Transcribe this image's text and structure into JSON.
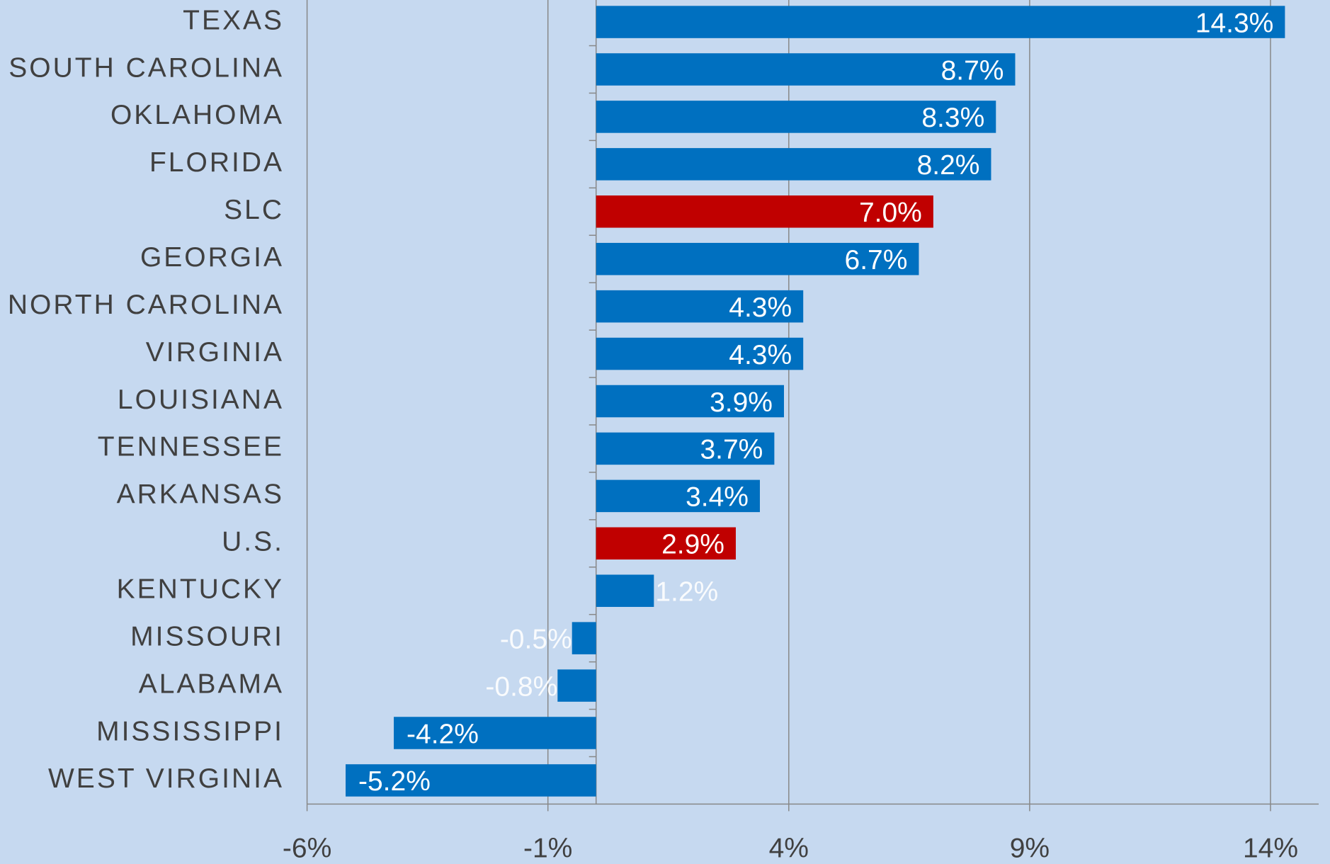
{
  "chart_data": {
    "type": "bar",
    "orientation": "horizontal",
    "categories": [
      "TEXAS",
      "SOUTH CAROLINA",
      "OKLAHOMA",
      "FLORIDA",
      "SLC",
      "GEORGIA",
      "NORTH CAROLINA",
      "VIRGINIA",
      "LOUISIANA",
      "TENNESSEE",
      "ARKANSAS",
      "U.S.",
      "KENTUCKY",
      "MISSOURI",
      "ALABAMA",
      "MISSISSIPPI",
      "WEST VIRGINIA"
    ],
    "values": [
      14.3,
      8.7,
      8.3,
      8.2,
      7.0,
      6.7,
      4.3,
      4.3,
      3.9,
      3.7,
      3.4,
      2.9,
      1.2,
      -0.5,
      -0.8,
      -4.2,
      -5.2
    ],
    "value_labels": [
      "14.3%",
      "8.7%",
      "8.3%",
      "8.2%",
      "7.0%",
      "6.7%",
      "4.3%",
      "4.3%",
      "3.9%",
      "3.7%",
      "3.4%",
      "2.9%",
      "1.2%",
      "-0.5%",
      "-0.8%",
      "-4.2%",
      "-5.2%"
    ],
    "colors": [
      "#0070c0",
      "#0070c0",
      "#0070c0",
      "#0070c0",
      "#c00000",
      "#0070c0",
      "#0070c0",
      "#0070c0",
      "#0070c0",
      "#0070c0",
      "#0070c0",
      "#c00000",
      "#0070c0",
      "#0070c0",
      "#0070c0",
      "#0070c0",
      "#0070c0"
    ],
    "xlim": [
      -6,
      15
    ],
    "xticks": [
      {
        "value": -6,
        "label": "-6%"
      },
      {
        "value": -1,
        "label": "-1%"
      },
      {
        "value": 4,
        "label": "4%"
      },
      {
        "value": 9,
        "label": "9%"
      },
      {
        "value": 14,
        "label": "14%"
      }
    ],
    "grid": true
  }
}
